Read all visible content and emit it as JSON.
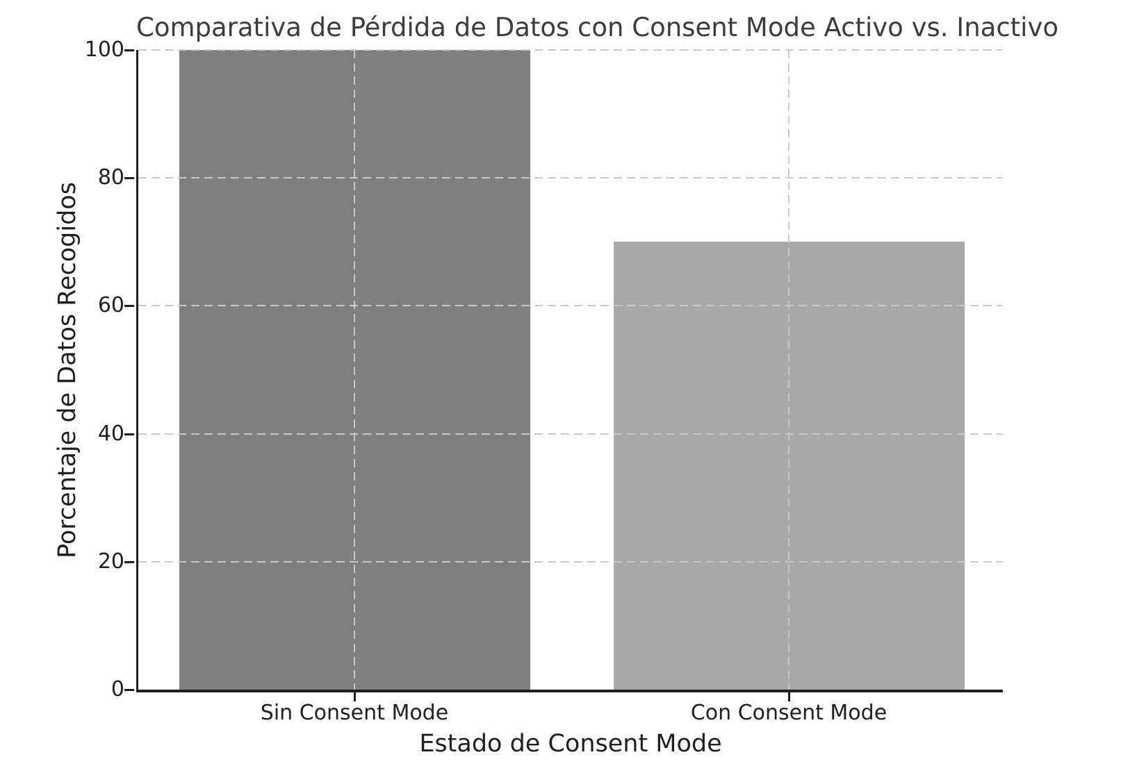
{
  "chart_data": {
    "type": "bar",
    "title": "Comparativa de Pérdida de Datos con Consent Mode Activo vs. Inactivo",
    "xlabel": "Estado de Consent Mode",
    "ylabel": "Porcentaje de Datos Recogidos",
    "categories": [
      "Sin Consent Mode",
      "Con Consent Mode"
    ],
    "values": [
      100,
      70
    ],
    "bar_colors": [
      "#7f7f7f",
      "#a9a9a9"
    ],
    "ylim": [
      0,
      100
    ],
    "yticks": [
      0,
      20,
      40,
      60,
      80,
      100
    ],
    "grid": true,
    "grid_style": "dashed",
    "grid_above_bars": true,
    "legend": false
  },
  "style": {
    "background_color": "#ffffff",
    "grid_color": "#c9c9c9",
    "spine_color": "#1f1f1f",
    "tick_label_color": "#1f1f1f",
    "title_color": "#3c3c3c"
  }
}
